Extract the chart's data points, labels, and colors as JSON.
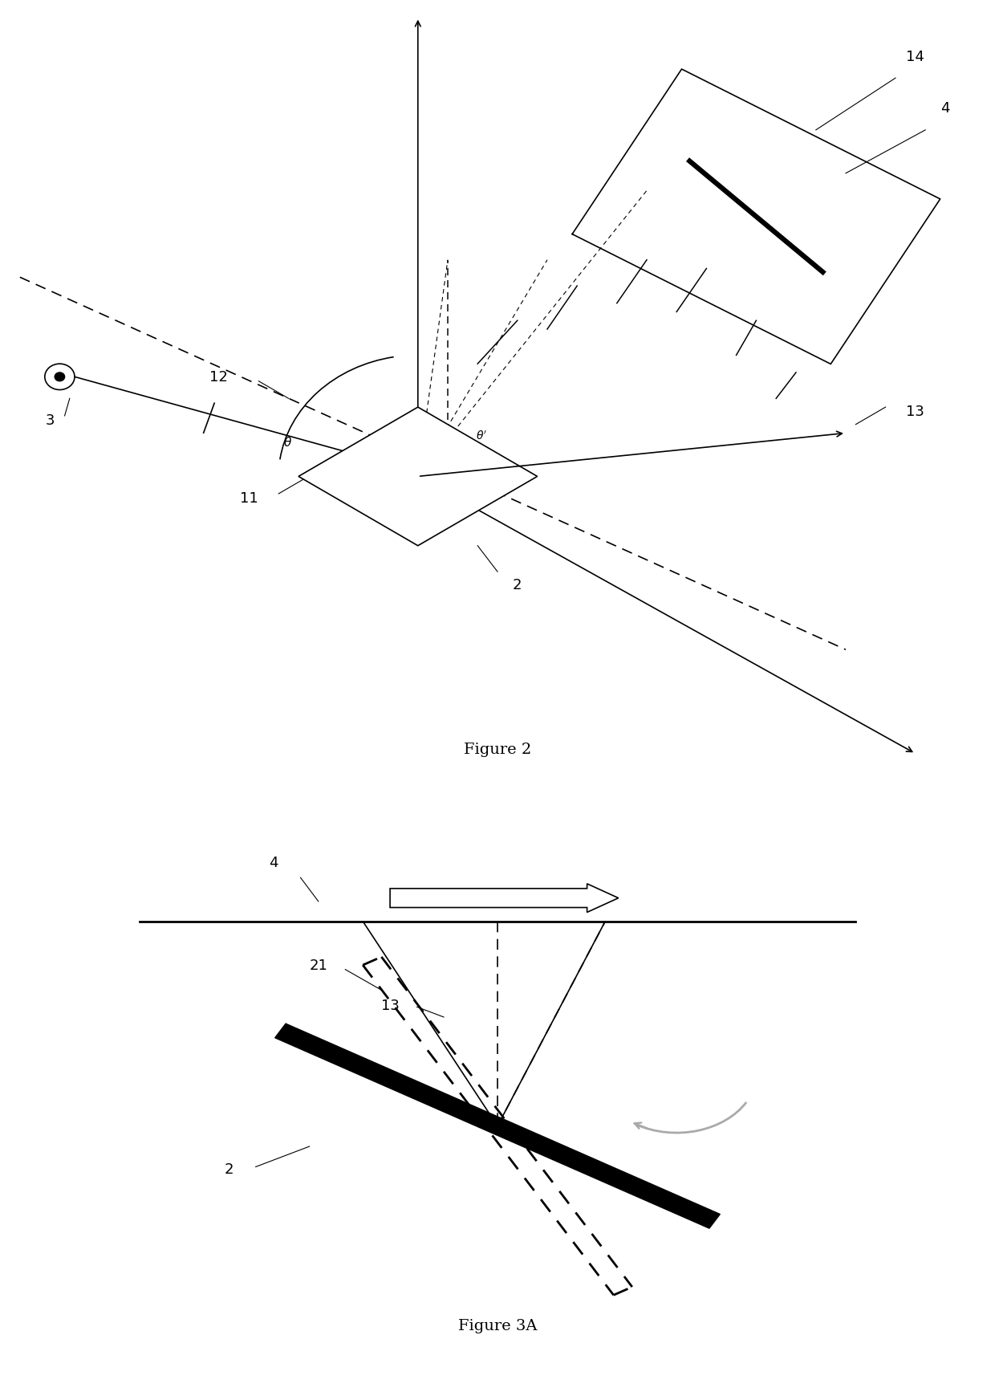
{
  "fig_width": 12.4,
  "fig_height": 17.34,
  "bg_color": "#ffffff"
}
